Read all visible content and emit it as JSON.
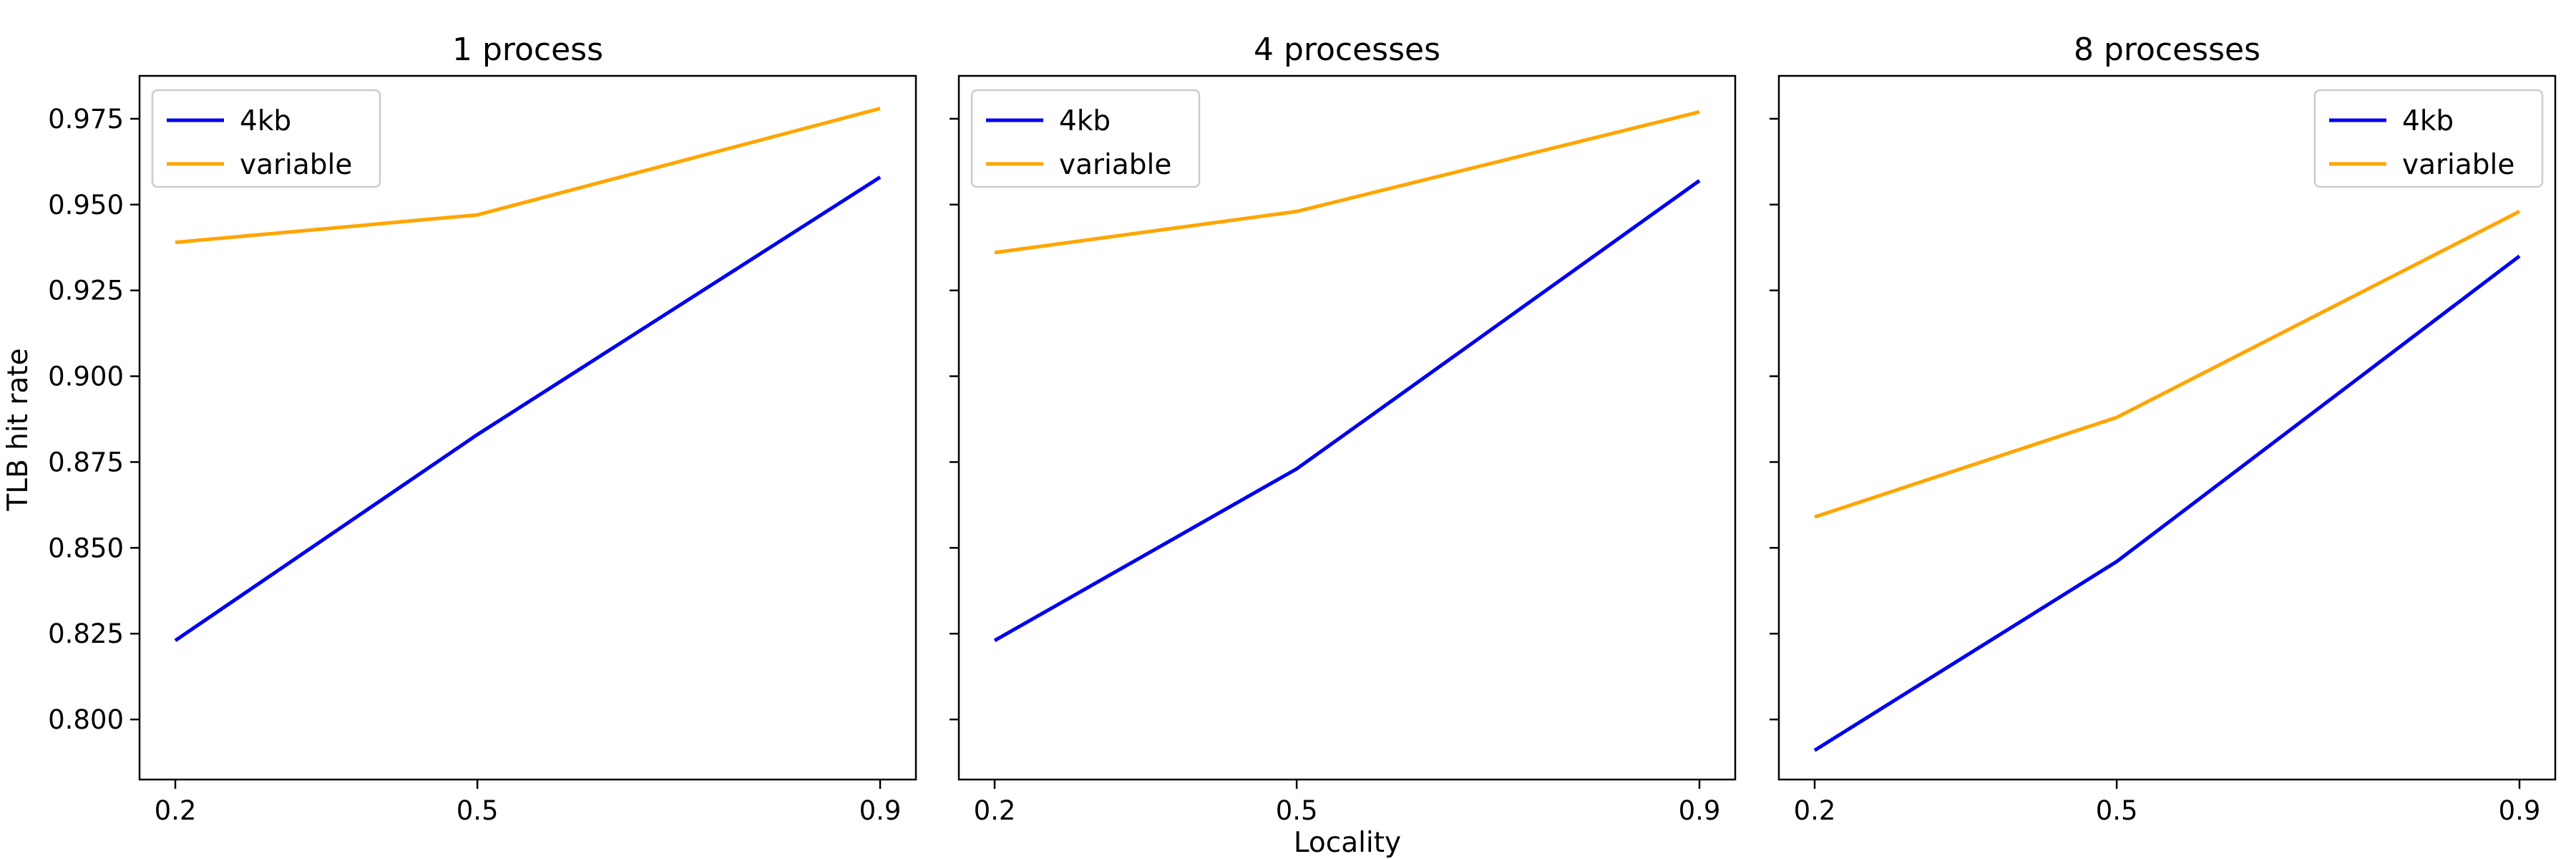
{
  "figure": {
    "xlabel": "Locality",
    "ylabel": "TLB hit rate"
  },
  "chart_data": [
    {
      "type": "line",
      "title": "1 process",
      "x": [
        0.2,
        0.5,
        0.9
      ],
      "xticks": [
        "0.2",
        "0.5",
        "0.9"
      ],
      "ylim": [
        0.7825,
        0.9875
      ],
      "yticks": [
        "0.800",
        "0.825",
        "0.850",
        "0.875",
        "0.900",
        "0.925",
        "0.950",
        "0.975"
      ],
      "legend": "top-left",
      "series": [
        {
          "name": "4kb",
          "color": "#0000ee",
          "values": [
            0.823,
            0.883,
            0.958
          ]
        },
        {
          "name": "variable",
          "color": "#ffa500",
          "values": [
            0.939,
            0.947,
            0.978
          ]
        }
      ]
    },
    {
      "type": "line",
      "title": "4 processes",
      "x": [
        0.2,
        0.5,
        0.9
      ],
      "xticks": [
        "0.2",
        "0.5",
        "0.9"
      ],
      "ylim": [
        0.7825,
        0.9875
      ],
      "yticks": [
        "0.800",
        "0.825",
        "0.850",
        "0.875",
        "0.900",
        "0.925",
        "0.950",
        "0.975"
      ],
      "legend": "top-left",
      "series": [
        {
          "name": "4kb",
          "color": "#0000ee",
          "values": [
            0.823,
            0.873,
            0.957
          ]
        },
        {
          "name": "variable",
          "color": "#ffa500",
          "values": [
            0.936,
            0.948,
            0.977
          ]
        }
      ]
    },
    {
      "type": "line",
      "title": "8 processes",
      "x": [
        0.2,
        0.5,
        0.9
      ],
      "xticks": [
        "0.2",
        "0.5",
        "0.9"
      ],
      "ylim": [
        0.7825,
        0.9875
      ],
      "yticks": [
        "0.800",
        "0.825",
        "0.850",
        "0.875",
        "0.900",
        "0.925",
        "0.950",
        "0.975"
      ],
      "legend": "top-right",
      "series": [
        {
          "name": "4kb",
          "color": "#0000ee",
          "values": [
            0.791,
            0.846,
            0.935
          ]
        },
        {
          "name": "variable",
          "color": "#ffa500",
          "values": [
            0.859,
            0.888,
            0.948
          ]
        }
      ]
    }
  ]
}
